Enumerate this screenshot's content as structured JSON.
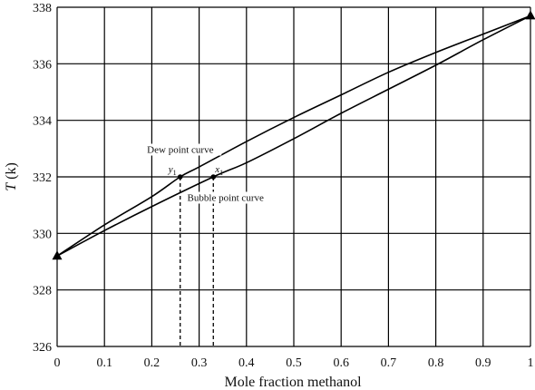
{
  "chart_data": {
    "type": "line",
    "title": "",
    "xlabel": "Mole fraction methanol",
    "ylabel": "T (k)",
    "ylabel_italic_part": "T",
    "ylabel_rest": " (k)",
    "xlim": [
      0,
      1
    ],
    "ylim": [
      326,
      338
    ],
    "xticks": [
      0,
      0.1,
      0.2,
      0.3,
      0.4,
      0.5,
      0.6,
      0.7,
      0.8,
      0.9,
      1
    ],
    "xtick_labels": [
      "0",
      "0.1",
      "0.2",
      "0.3",
      "0.4",
      "0.5",
      "0.6",
      "0.7",
      "0.8",
      "0.9",
      "1"
    ],
    "yticks": [
      326,
      328,
      330,
      332,
      334,
      336,
      338
    ],
    "ytick_labels": [
      "326",
      "328",
      "330",
      "332",
      "334",
      "336",
      "338"
    ],
    "grid": true,
    "series": [
      {
        "name": "Dew point curve",
        "x": [
          0,
          0.1,
          0.2,
          0.26,
          0.3,
          0.4,
          0.5,
          0.6,
          0.7,
          0.8,
          0.9,
          1
        ],
        "y": [
          329.2,
          330.3,
          331.3,
          332.0,
          332.35,
          333.25,
          334.1,
          334.9,
          335.7,
          336.4,
          337.05,
          337.7
        ]
      },
      {
        "name": "Bubble point curve",
        "x": [
          0,
          0.1,
          0.2,
          0.33,
          0.4,
          0.5,
          0.6,
          0.7,
          0.8,
          0.9,
          1
        ],
        "y": [
          329.2,
          330.1,
          330.95,
          332.0,
          332.5,
          333.35,
          334.25,
          335.1,
          335.95,
          336.85,
          337.7
        ]
      }
    ],
    "endpoints": [
      {
        "x": 0,
        "y": 329.2
      },
      {
        "x": 1,
        "y": 337.7
      }
    ],
    "marked_points": [
      {
        "symbol": "y",
        "subscript": "1",
        "x": 0.26,
        "y": 332.0
      },
      {
        "symbol": "x",
        "subscript": "1",
        "x": 0.33,
        "y": 332.0
      }
    ],
    "annotations": {
      "dew": {
        "text": "Dew point curve",
        "x": 0.19,
        "y": 332.85
      },
      "bubble": {
        "text": "Bubble point curve",
        "x": 0.275,
        "y": 331.15
      }
    }
  }
}
